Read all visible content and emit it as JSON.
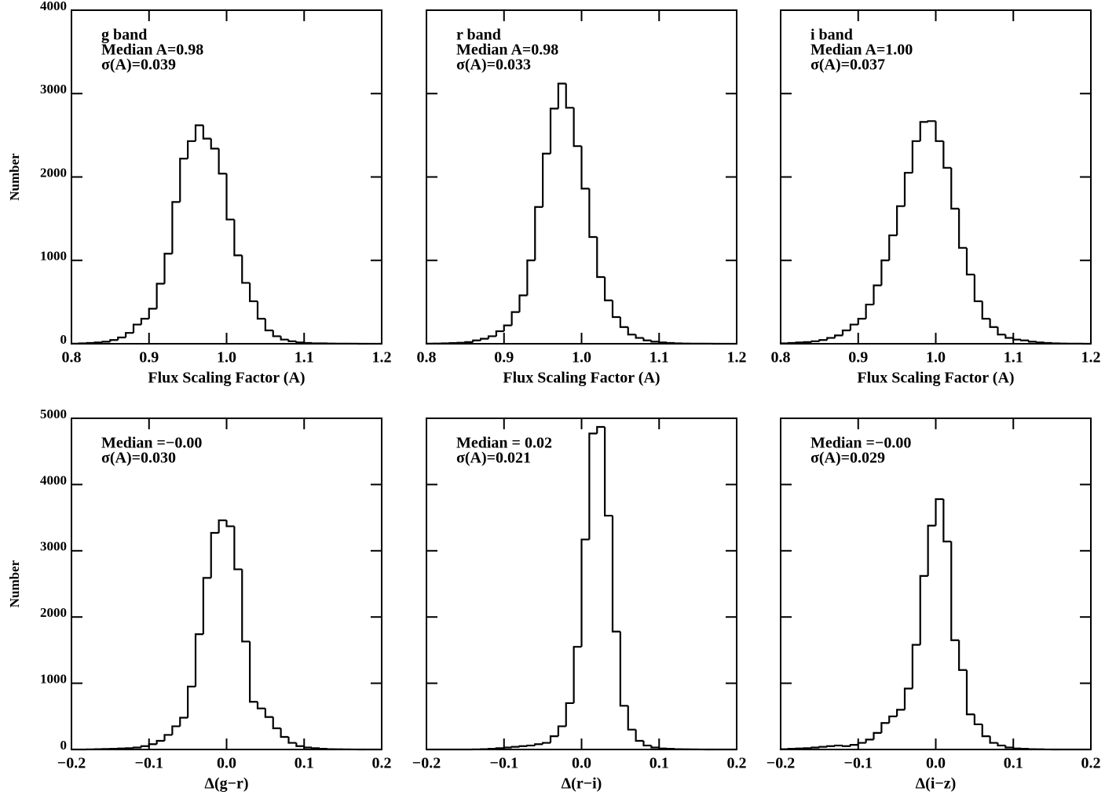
{
  "chart_data": [
    {
      "type": "histogram",
      "annotations": [
        "g band",
        "Median A=0.98",
        "σ(A)=0.039"
      ],
      "x_label": "Flux Scaling Factor (A)",
      "y_label": "Number",
      "bins": [
        0.8,
        0.81,
        0.82,
        0.83,
        0.84,
        0.85,
        0.86,
        0.87,
        0.88,
        0.89,
        0.9,
        0.91,
        0.92,
        0.93,
        0.94,
        0.95,
        0.96,
        0.97,
        0.98,
        0.99,
        1.0,
        1.01,
        1.02,
        1.03,
        1.04,
        1.05,
        1.06,
        1.07,
        1.08,
        1.09,
        1.1,
        1.11,
        1.12,
        1.13,
        1.14,
        1.15,
        1.16,
        1.17,
        1.18,
        1.19,
        1.2
      ],
      "values": [
        2,
        5,
        10,
        15,
        25,
        45,
        75,
        130,
        230,
        300,
        420,
        720,
        1080,
        1700,
        2220,
        2430,
        2620,
        2460,
        2340,
        2040,
        1490,
        1060,
        730,
        510,
        300,
        160,
        90,
        50,
        30,
        15,
        10,
        5,
        5,
        3,
        2,
        1,
        1,
        0,
        0,
        0
      ],
      "color": "#000000",
      "xlim": [
        0.8,
        1.2
      ],
      "ylim": [
        0,
        4000
      ],
      "xticks": [
        0.8,
        0.9,
        {
          "value": 1,
          "label": "1.0"
        },
        1.1,
        1.2
      ],
      "yticks": [
        0,
        1000,
        2000,
        3000,
        4000
      ]
    },
    {
      "type": "histogram",
      "annotations": [
        "r band",
        "Median A=0.98",
        "σ(A)=0.033"
      ],
      "x_label": "Flux Scaling Factor (A)",
      "bins": [
        0.8,
        0.81,
        0.82,
        0.83,
        0.84,
        0.85,
        0.86,
        0.87,
        0.88,
        0.89,
        0.9,
        0.91,
        0.92,
        0.93,
        0.94,
        0.95,
        0.96,
        0.97,
        0.98,
        0.99,
        1.0,
        1.01,
        1.02,
        1.03,
        1.04,
        1.05,
        1.06,
        1.07,
        1.08,
        1.09,
        1.1,
        1.11,
        1.12,
        1.13,
        1.14,
        1.15,
        1.16,
        1.17,
        1.18,
        1.19,
        1.2
      ],
      "values": [
        2,
        3,
        5,
        8,
        12,
        20,
        40,
        60,
        90,
        150,
        220,
        380,
        580,
        1000,
        1640,
        2280,
        2820,
        3120,
        2830,
        2370,
        1860,
        1280,
        800,
        520,
        320,
        200,
        110,
        70,
        40,
        25,
        15,
        10,
        5,
        3,
        2,
        1,
        1,
        0,
        0,
        0
      ],
      "color": "#000000",
      "xlim": [
        0.8,
        1.2
      ],
      "ylim": [
        0,
        4000
      ],
      "xticks": [
        0.8,
        0.9,
        {
          "value": 1,
          "label": "1.0"
        },
        1.1,
        1.2
      ],
      "yticks": [
        0,
        1000,
        2000,
        3000,
        4000
      ]
    },
    {
      "type": "histogram",
      "annotations": [
        "i band",
        "Median A=1.00",
        "σ(A)=0.037"
      ],
      "x_label": "Flux Scaling Factor (A)",
      "bins": [
        0.8,
        0.81,
        0.82,
        0.83,
        0.84,
        0.85,
        0.86,
        0.87,
        0.88,
        0.89,
        0.9,
        0.91,
        0.92,
        0.93,
        0.94,
        0.95,
        0.96,
        0.97,
        0.98,
        0.99,
        1.0,
        1.01,
        1.02,
        1.03,
        1.04,
        1.05,
        1.06,
        1.07,
        1.08,
        1.09,
        1.1,
        1.11,
        1.12,
        1.13,
        1.14,
        1.15,
        1.16,
        1.17,
        1.18,
        1.19,
        1.2
      ],
      "values": [
        5,
        10,
        15,
        20,
        30,
        45,
        70,
        100,
        160,
        230,
        300,
        470,
        700,
        1000,
        1300,
        1650,
        2050,
        2430,
        2660,
        2670,
        2430,
        2110,
        1620,
        1150,
        830,
        510,
        300,
        200,
        110,
        70,
        50,
        40,
        25,
        15,
        10,
        5,
        3,
        2,
        1,
        0
      ],
      "color": "#000000",
      "xlim": [
        0.8,
        1.2
      ],
      "ylim": [
        0,
        4000
      ],
      "xticks": [
        0.8,
        0.9,
        {
          "value": 1,
          "label": "1.0"
        },
        1.1,
        1.2
      ],
      "yticks": [
        0,
        1000,
        2000,
        3000,
        4000
      ]
    },
    {
      "type": "histogram",
      "annotations": [
        "Median =−0.00",
        "σ(A)=0.030"
      ],
      "x_label": "Δ(g−r)",
      "y_label": "Number",
      "bins": [
        -0.2,
        -0.19,
        -0.18,
        -0.17,
        -0.16,
        -0.15,
        -0.14,
        -0.13,
        -0.12,
        -0.11,
        -0.1,
        -0.09,
        -0.08,
        -0.07,
        -0.06,
        -0.05,
        -0.04,
        -0.03,
        -0.02,
        -0.01,
        0,
        0.01,
        0.02,
        0.03,
        0.04,
        0.05,
        0.06,
        0.07,
        0.08,
        0.09,
        0.1,
        0.11,
        0.12,
        0.13,
        0.14,
        0.15,
        0.16,
        0.17,
        0.18,
        0.19,
        0.2
      ],
      "values": [
        0,
        0,
        2,
        5,
        8,
        10,
        15,
        20,
        30,
        50,
        80,
        130,
        220,
        350,
        480,
        950,
        1740,
        2590,
        3270,
        3460,
        3370,
        2720,
        1630,
        720,
        620,
        490,
        320,
        190,
        100,
        50,
        30,
        20,
        10,
        5,
        3,
        2,
        1,
        0,
        0,
        0
      ],
      "color": "#000000",
      "xlim": [
        -0.2,
        0.2
      ],
      "ylim": [
        0,
        5000
      ],
      "xticks": [
        {
          "value": -0.2,
          "label": "−0.2"
        },
        {
          "value": -0.1,
          "label": "−0.1"
        },
        {
          "value": 0,
          "label": "0.0"
        },
        0.1,
        0.2
      ],
      "yticks": [
        0,
        1000,
        2000,
        3000,
        4000,
        5000
      ]
    },
    {
      "type": "histogram",
      "annotations": [
        "Median = 0.02",
        "σ(A)=0.021"
      ],
      "x_label": "Δ(r−i)",
      "bins": [
        -0.2,
        -0.19,
        -0.18,
        -0.17,
        -0.16,
        -0.15,
        -0.14,
        -0.13,
        -0.12,
        -0.11,
        -0.1,
        -0.09,
        -0.08,
        -0.07,
        -0.06,
        -0.05,
        -0.04,
        -0.03,
        -0.02,
        -0.01,
        0,
        0.01,
        0.02,
        0.03,
        0.04,
        0.05,
        0.06,
        0.07,
        0.08,
        0.09,
        0.1,
        0.11,
        0.12,
        0.13,
        0.14,
        0.15,
        0.16,
        0.17,
        0.18,
        0.19,
        0.2
      ],
      "values": [
        0,
        0,
        0,
        0,
        0,
        0,
        2,
        5,
        10,
        20,
        30,
        40,
        50,
        60,
        80,
        100,
        200,
        350,
        700,
        1550,
        3170,
        4770,
        4870,
        3530,
        1780,
        660,
        300,
        130,
        60,
        30,
        15,
        10,
        5,
        3,
        2,
        1,
        0,
        0,
        0,
        0
      ],
      "color": "#000000",
      "xlim": [
        -0.2,
        0.2
      ],
      "ylim": [
        0,
        5000
      ],
      "xticks": [
        {
          "value": -0.2,
          "label": "−0.2"
        },
        {
          "value": -0.1,
          "label": "−0.1"
        },
        {
          "value": 0,
          "label": "0.0"
        },
        0.1,
        0.2
      ],
      "yticks": [
        0,
        1000,
        2000,
        3000,
        4000,
        5000
      ]
    },
    {
      "type": "histogram",
      "annotations": [
        "Median =−0.00",
        "σ(A)=0.029"
      ],
      "x_label": "Δ(i−z)",
      "bins": [
        -0.2,
        -0.19,
        -0.18,
        -0.17,
        -0.16,
        -0.15,
        -0.14,
        -0.13,
        -0.12,
        -0.11,
        -0.1,
        -0.09,
        -0.08,
        -0.07,
        -0.06,
        -0.05,
        -0.04,
        -0.03,
        -0.02,
        -0.01,
        0,
        0.01,
        0.02,
        0.03,
        0.04,
        0.05,
        0.06,
        0.07,
        0.08,
        0.09,
        0.1,
        0.11,
        0.12,
        0.13,
        0.14,
        0.15,
        0.16,
        0.17,
        0.18,
        0.19,
        0.2
      ],
      "values": [
        5,
        10,
        15,
        20,
        30,
        40,
        50,
        60,
        50,
        70,
        100,
        150,
        250,
        400,
        500,
        600,
        920,
        1580,
        2620,
        3380,
        3780,
        3140,
        1650,
        1200,
        530,
        380,
        200,
        100,
        60,
        30,
        15,
        10,
        5,
        3,
        1,
        0,
        0,
        0,
        0,
        0
      ],
      "color": "#000000",
      "xlim": [
        -0.2,
        0.2
      ],
      "ylim": [
        0,
        5000
      ],
      "xticks": [
        {
          "value": -0.2,
          "label": "−0.2"
        },
        {
          "value": -0.1,
          "label": "−0.1"
        },
        {
          "value": 0,
          "label": "0.0"
        },
        0.1,
        0.2
      ],
      "yticks": [
        0,
        1000,
        2000,
        3000,
        4000,
        5000
      ]
    }
  ]
}
